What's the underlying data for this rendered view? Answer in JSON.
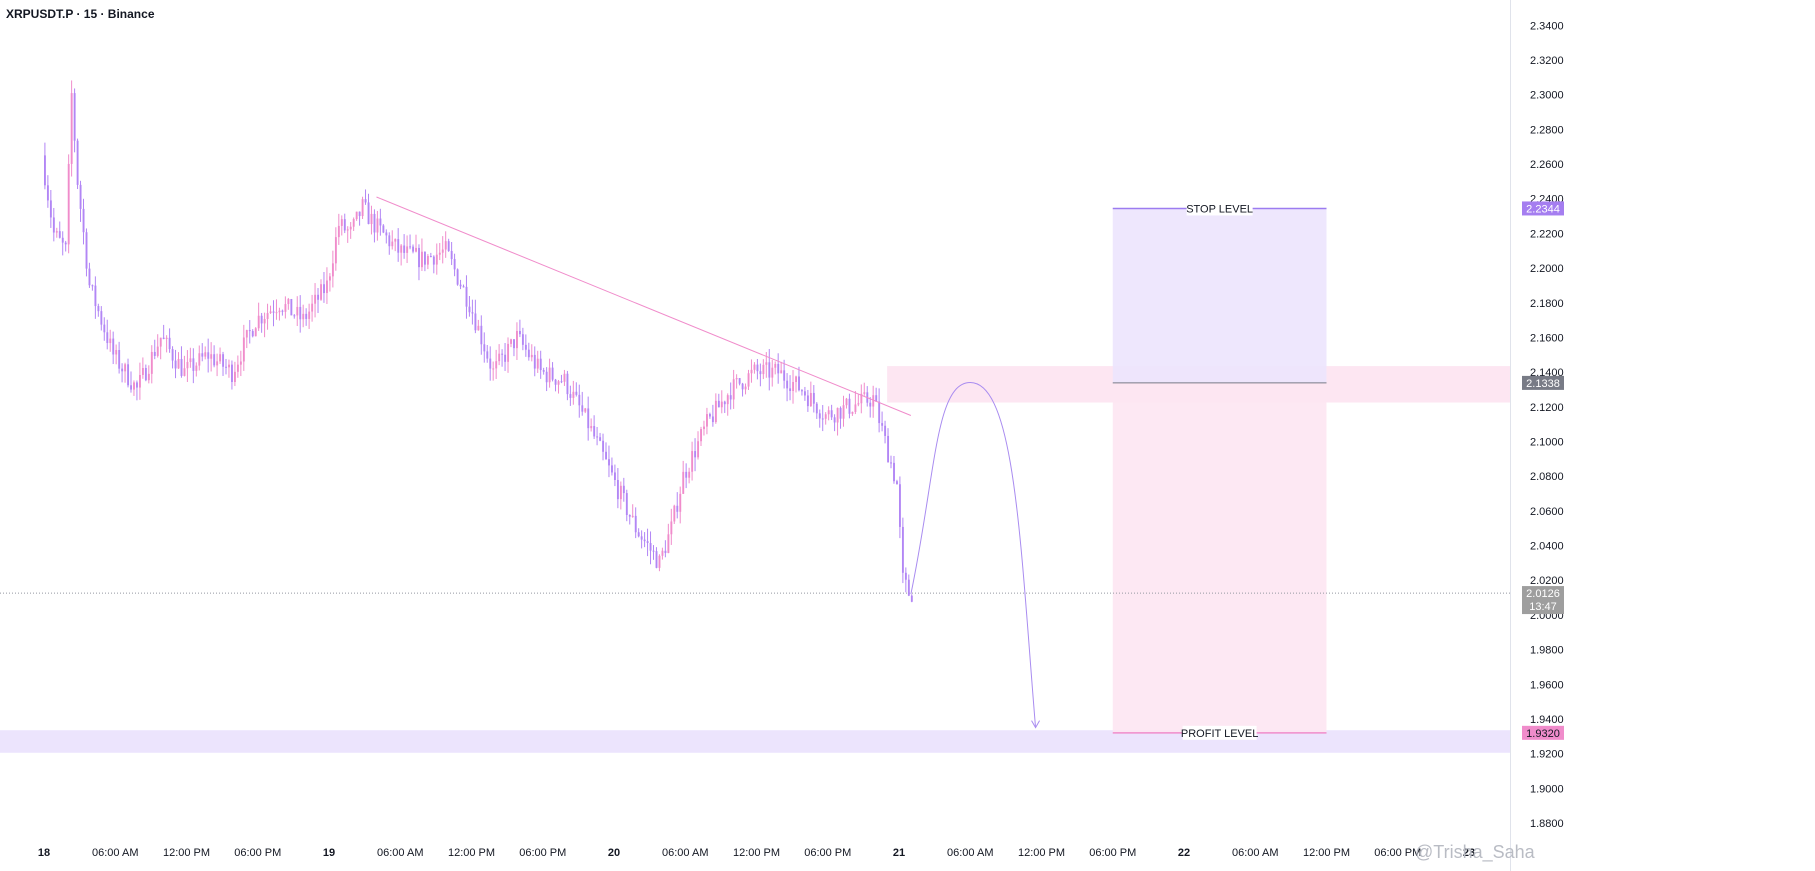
{
  "header": {
    "symbol": "XRPUSDT.P · 15 · Binance"
  },
  "colors": {
    "candle": "#b286f5",
    "candle_alt": "#f08ccb",
    "trendline": "#f08ccb",
    "stop_zone": "#ece4fd",
    "profit_zone": "#fde6f2",
    "resistance_zone": "#fde6f2",
    "target_zone": "#ece4fd",
    "stop_tag": "#a57ef0",
    "entry_tag": "#787b86",
    "price_tag": "#9e9e9e",
    "profit_tag": "#f08ccb"
  },
  "chart_data": {
    "type": "candlestick",
    "symbol": "XRPUSDT.P",
    "interval": "15",
    "exchange": "Binance",
    "y_axis": {
      "min": 1.88,
      "max": 2.35,
      "position": "right",
      "ticks": [
        "2.3400",
        "2.3200",
        "2.3000",
        "2.2800",
        "2.2600",
        "2.2400",
        "2.2200",
        "2.2000",
        "2.1800",
        "2.1600",
        "2.1400",
        "2.1200",
        "2.1000",
        "2.0800",
        "2.0600",
        "2.0400",
        "2.0200",
        "2.0000",
        "1.9800",
        "1.9600",
        "1.9400",
        "1.9200",
        "1.9000",
        "1.8800"
      ]
    },
    "x_axis": {
      "start": "Nov 18 00:00",
      "end": "Nov 23 00:00",
      "ticks": [
        {
          "label": "18",
          "day": true
        },
        {
          "label": "06:00 AM"
        },
        {
          "label": "12:00 PM"
        },
        {
          "label": "06:00 PM"
        },
        {
          "label": "19",
          "day": true
        },
        {
          "label": "06:00 AM"
        },
        {
          "label": "12:00 PM"
        },
        {
          "label": "06:00 PM"
        },
        {
          "label": "20",
          "day": true
        },
        {
          "label": "06:00 AM"
        },
        {
          "label": "12:00 PM"
        },
        {
          "label": "06:00 PM"
        },
        {
          "label": "21",
          "day": true
        },
        {
          "label": "06:00 AM"
        },
        {
          "label": "12:00 PM"
        },
        {
          "label": "06:00 PM"
        },
        {
          "label": "22",
          "day": true
        },
        {
          "label": "06:00 AM"
        },
        {
          "label": "12:00 PM"
        },
        {
          "label": "06:00 PM"
        },
        {
          "label": "23",
          "day": true
        }
      ]
    },
    "price_path": [
      [
        "Nov 18 00:00",
        2.265
      ],
      [
        "Nov 18 01:00",
        2.22
      ],
      [
        "Nov 18 02:00",
        2.21
      ],
      [
        "Nov 18 02:30",
        2.3
      ],
      [
        "Nov 18 03:00",
        2.25
      ],
      [
        "Nov 18 04:00",
        2.19
      ],
      [
        "Nov 18 05:00",
        2.17
      ],
      [
        "Nov 18 06:00",
        2.15
      ],
      [
        "Nov 18 08:00",
        2.13
      ],
      [
        "Nov 18 10:00",
        2.16
      ],
      [
        "Nov 18 12:00",
        2.14
      ],
      [
        "Nov 18 14:00",
        2.15
      ],
      [
        "Nov 18 16:00",
        2.14
      ],
      [
        "Nov 18 18:00",
        2.17
      ],
      [
        "Nov 18 20:00",
        2.18
      ],
      [
        "Nov 18 22:00",
        2.17
      ],
      [
        "Nov 19 00:00",
        2.19
      ],
      [
        "Nov 19 01:00",
        2.225
      ],
      [
        "Nov 19 02:00",
        2.22
      ],
      [
        "Nov 19 03:00",
        2.235
      ],
      [
        "Nov 19 04:00",
        2.225
      ],
      [
        "Nov 19 06:00",
        2.21
      ],
      [
        "Nov 19 08:00",
        2.205
      ],
      [
        "Nov 19 10:00",
        2.21
      ],
      [
        "Nov 19 12:00",
        2.18
      ],
      [
        "Nov 19 14:00",
        2.14
      ],
      [
        "Nov 19 16:00",
        2.16
      ],
      [
        "Nov 19 18:00",
        2.14
      ],
      [
        "Nov 19 20:00",
        2.135
      ],
      [
        "Nov 19 22:00",
        2.11
      ],
      [
        "Nov 20 00:00",
        2.08
      ],
      [
        "Nov 20 02:00",
        2.05
      ],
      [
        "Nov 20 04:00",
        2.03
      ],
      [
        "Nov 20 05:00",
        2.05
      ],
      [
        "Nov 20 06:00",
        2.08
      ],
      [
        "Nov 20 08:00",
        2.11
      ],
      [
        "Nov 20 10:00",
        2.13
      ],
      [
        "Nov 20 12:00",
        2.14
      ],
      [
        "Nov 20 14:00",
        2.14
      ],
      [
        "Nov 20 16:00",
        2.13
      ],
      [
        "Nov 20 18:00",
        2.115
      ],
      [
        "Nov 20 20:00",
        2.12
      ],
      [
        "Nov 20 22:00",
        2.125
      ],
      [
        "Nov 20 23:00",
        2.1
      ],
      [
        "Nov 21 00:00",
        2.075
      ],
      [
        "Nov 21 00:30",
        2.02
      ],
      [
        "Nov 21 01:00",
        2.0126
      ]
    ],
    "trendline": {
      "from": [
        "Nov 19 04:00",
        2.241
      ],
      "to": [
        "Nov 21 01:00",
        2.115
      ]
    },
    "projection": {
      "from": [
        "Nov 21 01:00",
        2.012
      ],
      "peak": [
        "Nov 21 06:00",
        2.134
      ],
      "to": [
        "Nov 21 11:30",
        1.935
      ]
    },
    "resistance_zone": {
      "from": 2.1225,
      "to": 2.1435,
      "start": "Nov 20 23:00"
    },
    "target_zone": {
      "from": 1.9205,
      "to": 1.9335
    },
    "position": {
      "start": "Nov 21 18:00",
      "end": "Nov 22 12:00",
      "stop_label": "STOP LEVEL",
      "stop_price": 2.2344,
      "entry_price": 2.1338,
      "profit_label": "PROFIT LEVEL",
      "profit_price": 1.932
    },
    "price_labels": {
      "stop": "2.2344",
      "entry": "2.1338",
      "last": "2.0126",
      "countdown": "13:47",
      "profit": "1.9320"
    },
    "last_price": 2.0126
  },
  "watermark": "@Trisha_Saha"
}
